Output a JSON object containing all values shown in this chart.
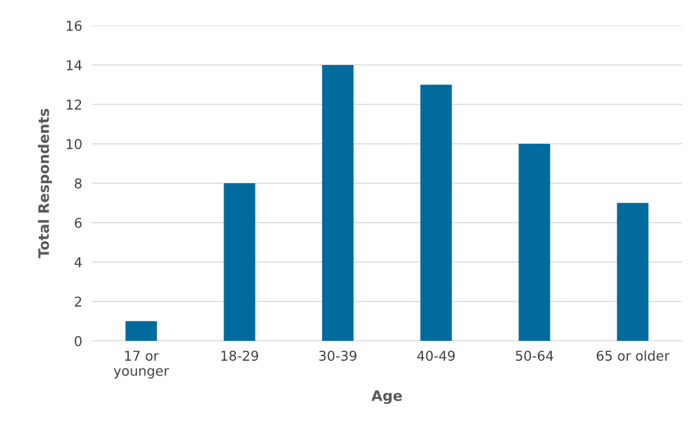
{
  "chart_data": {
    "type": "bar",
    "xlabel": "Age",
    "ylabel": "Total Respondents",
    "categories": [
      "17 or\nyounger",
      "18-29",
      "30-39",
      "40-49",
      "50-64",
      "65 or older"
    ],
    "values": [
      1,
      8,
      14,
      13,
      10,
      7
    ],
    "color": "#006b9c",
    "ylim": [
      0,
      16
    ],
    "yticks": [
      0,
      2,
      4,
      6,
      8,
      10,
      12,
      14,
      16
    ],
    "grid": "y",
    "legend": false
  }
}
